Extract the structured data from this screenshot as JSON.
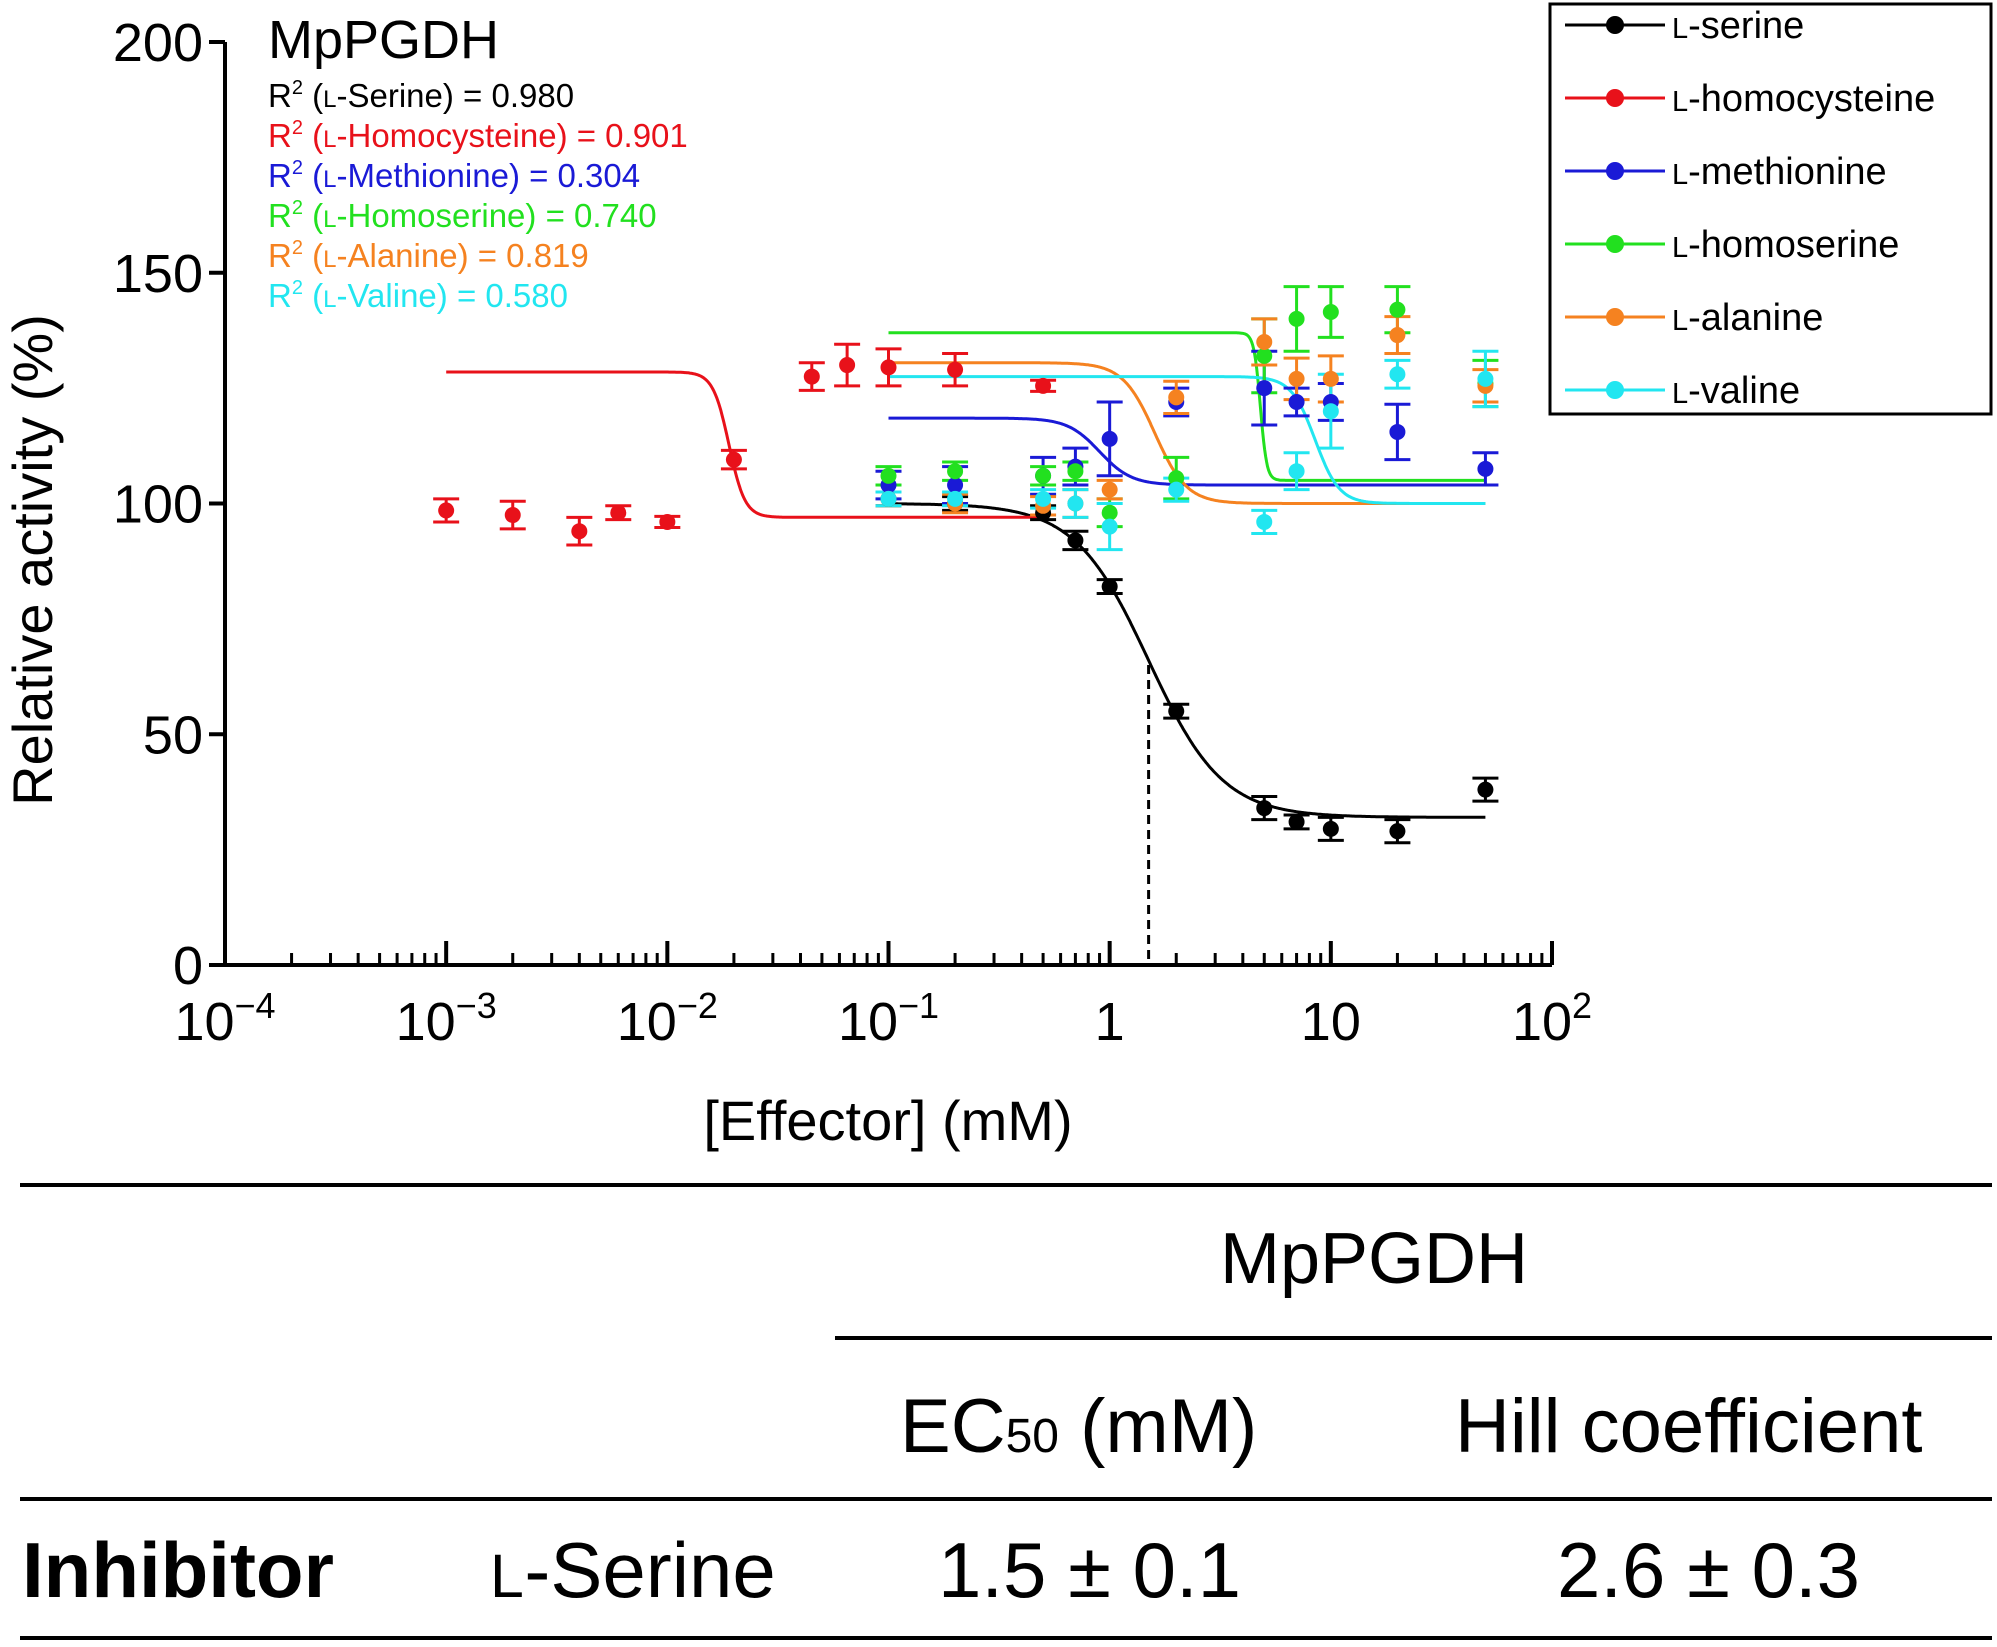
{
  "chart_data": {
    "type": "scatter",
    "title": "MpPGDH",
    "xlabel": "[Effector] (mM)",
    "ylabel": "Relative activity (%)",
    "xscale": "log",
    "xlim": [
      0.0001,
      100
    ],
    "ylim": [
      0,
      200
    ],
    "yticks": [
      0,
      50,
      100,
      150,
      200
    ],
    "ytick_labels": [
      "0",
      "50",
      "100",
      "150",
      "200"
    ],
    "xticks": [
      0.0001,
      0.001,
      0.01,
      0.1,
      1,
      10,
      100
    ],
    "xtick_labels": [
      {
        "base": "10",
        "exp": "−4"
      },
      {
        "base": "10",
        "exp": "−3"
      },
      {
        "base": "10",
        "exp": "−2"
      },
      {
        "base": "10",
        "exp": "−1"
      },
      {
        "base": "1",
        "exp": ""
      },
      {
        "base": "10",
        "exp": ""
      },
      {
        "base": "10",
        "exp": "2"
      }
    ],
    "legend_position": "top-right",
    "ec50_marker": {
      "x": 1.5,
      "y": 65
    },
    "series": [
      {
        "name": "serine",
        "legend_prefix": "L",
        "legend_suffix": "-serine",
        "color": "#000000",
        "r2_prefix": "R",
        "r2_sup": "2",
        "r2_open": " (",
        "r2_sc": "L",
        "r2_name": "-Serine",
        "r2_close": ") = 0.980",
        "x": [
          0.1,
          0.2,
          0.5,
          0.7,
          1,
          2,
          5,
          7,
          10,
          20,
          50
        ],
        "y": [
          101,
          100,
          98,
          92,
          82,
          55,
          34,
          31,
          29.5,
          29,
          38
        ],
        "err": [
          1.5,
          1.5,
          1.5,
          2,
          1.5,
          1.5,
          2.5,
          1.5,
          2.5,
          2.5,
          2.5
        ],
        "fit": {
          "top": 100,
          "bottom": 32,
          "ec50": 1.5,
          "n": 2.6,
          "range": [
            0.1,
            50
          ]
        }
      },
      {
        "name": "homocysteine",
        "legend_prefix": "L",
        "legend_suffix": "-homocysteine",
        "color": "#e8111a",
        "r2_prefix": "R",
        "r2_sup": "2",
        "r2_open": " (",
        "r2_sc": "L",
        "r2_name": "-Homocysteine",
        "r2_close": ") = 0.901",
        "x": [
          0.001,
          0.002,
          0.004,
          0.006,
          0.01,
          0.02,
          0.045,
          0.065,
          0.1,
          0.2,
          0.5
        ],
        "y": [
          98.5,
          97.5,
          94,
          98,
          96,
          109.5,
          127.5,
          130,
          129.5,
          129,
          125.5
        ],
        "err": [
          2.5,
          3,
          3,
          1.5,
          1.2,
          2,
          3,
          4.5,
          4,
          3.5,
          1.2
        ],
        "fit": {
          "top": 128.5,
          "bottom": 97,
          "ec50": 0.019,
          "n": 12,
          "range": [
            0.001,
            0.5
          ]
        }
      },
      {
        "name": "methionine",
        "legend_prefix": "L",
        "legend_suffix": "-methionine",
        "color": "#1a1ad6",
        "r2_prefix": "R",
        "r2_sup": "2",
        "r2_open": " (",
        "r2_sc": "L",
        "r2_name": "-Methionine",
        "r2_close": ") = 0.304",
        "x": [
          0.1,
          0.2,
          0.5,
          0.7,
          1,
          2,
          5,
          7,
          10,
          20,
          50
        ],
        "y": [
          104,
          104,
          106,
          108,
          114,
          122,
          125,
          122,
          122,
          115.5,
          107.5
        ],
        "err": [
          3,
          4,
          4,
          4,
          8,
          3,
          8,
          3,
          4,
          6,
          3.5
        ],
        "fit": {
          "top": 118.5,
          "bottom": 104,
          "ec50": 0.9,
          "n": 6,
          "range": [
            0.1,
            50
          ]
        }
      },
      {
        "name": "homoserine",
        "legend_prefix": "L",
        "legend_suffix": "-homoserine",
        "color": "#22e01f",
        "r2_prefix": "R",
        "r2_sup": "2",
        "r2_open": " (",
        "r2_sc": "L",
        "r2_name": "-Homoserine",
        "r2_close": ") = 0.740",
        "x": [
          0.1,
          0.2,
          0.5,
          0.7,
          1,
          2,
          5,
          7,
          10,
          20,
          50
        ],
        "y": [
          106,
          107,
          106,
          107,
          98,
          105.5,
          132,
          140,
          141.5,
          142,
          126
        ],
        "err": [
          2,
          2,
          2,
          2,
          3,
          4.5,
          8,
          7,
          5.5,
          5,
          5
        ],
        "fit": {
          "top": 137,
          "bottom": 105,
          "ec50": 4.8,
          "n": 30,
          "range": [
            0.1,
            50
          ]
        }
      },
      {
        "name": "alanine",
        "legend_prefix": "L",
        "legend_suffix": "-alanine",
        "color": "#f58220",
        "r2_prefix": "R",
        "r2_sup": "2",
        "r2_open": " (",
        "r2_sc": "L",
        "r2_name": "-Alanine",
        "r2_close": ") = 0.819",
        "x": [
          0.1,
          0.2,
          0.5,
          0.7,
          1,
          2,
          5,
          7,
          10,
          20,
          50
        ],
        "y": [
          101,
          100,
          99.5,
          100,
          103,
          123,
          135,
          127,
          127,
          136.5,
          125.5
        ],
        "err": [
          1.5,
          2,
          2,
          3,
          2,
          3.5,
          5,
          4.5,
          5,
          4,
          3.5
        ],
        "fit": {
          "top": 130.5,
          "bottom": 100,
          "ec50": 1.6,
          "n": 6,
          "range": [
            0.1,
            50
          ]
        }
      },
      {
        "name": "valine",
        "legend_prefix": "L",
        "legend_suffix": "-valine",
        "color": "#22e6f0",
        "r2_prefix": "R",
        "r2_sup": "2",
        "r2_open": " (",
        "r2_sc": "L",
        "r2_name": "-Valine",
        "r2_close": ") = 0.580",
        "x": [
          0.1,
          0.2,
          0.5,
          0.7,
          1,
          2,
          5,
          7,
          10,
          20,
          50
        ],
        "y": [
          101,
          101,
          101,
          100,
          95,
          103,
          96,
          107,
          120,
          128,
          127
        ],
        "err": [
          1.5,
          1.5,
          2,
          3,
          5,
          2.5,
          2.5,
          4,
          8,
          3,
          6
        ],
        "fit": {
          "top": 127.5,
          "bottom": 100,
          "ec50": 8.5,
          "n": 8,
          "range": [
            0.1,
            50
          ]
        }
      }
    ]
  },
  "table": {
    "group_header": "MpPGDH",
    "col_ec50_main": "EC",
    "col_ec50_sub": "50",
    "col_ec50_unit": " (mM)",
    "col_hill": "Hill coefficient",
    "row_label": "Inhibitor",
    "effector_prefix": "L",
    "effector_name": "-Serine",
    "ec50_value": "1.5 ± 0.1",
    "hill_value": "2.6 ± 0.3"
  }
}
